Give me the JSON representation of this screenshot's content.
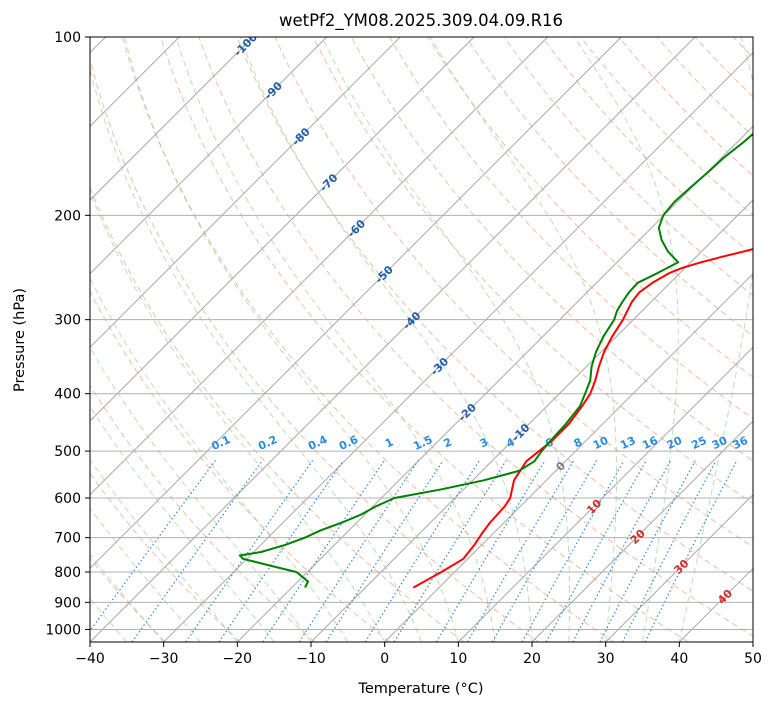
{
  "chart_data": {
    "type": "line",
    "title": "wetPf2_YM08.2025.309.04.09.R16",
    "xlabel": "Temperature (°C)",
    "ylabel": "Pressure (hPa)",
    "xlim": [
      -40,
      50
    ],
    "ylim": [
      1050,
      100
    ],
    "y_scale": "log",
    "grid": true,
    "x_ticks": [
      -40,
      -30,
      -20,
      -10,
      0,
      10,
      20,
      30,
      40,
      50
    ],
    "y_ticks": [
      100,
      200,
      300,
      400,
      500,
      600,
      700,
      800,
      900,
      1000
    ],
    "skew_isotherm_labels": [
      "-100",
      "-90",
      "-80",
      "-70",
      "-60",
      "-50",
      "-40",
      "-30",
      "-20",
      "-10",
      "0",
      "10",
      "20",
      "30",
      "40"
    ],
    "mixing_ratio_labels": [
      "0.1",
      "0.2",
      "0.4",
      "0.6",
      "1",
      "1.5",
      "2",
      "3",
      "4",
      "6",
      "8",
      "10",
      "13",
      "16",
      "20",
      "25",
      "30",
      "36"
    ],
    "series": [
      {
        "color": "#ff0000",
        "pressure": [
          850,
          800,
          760,
          720,
          690,
          660,
          620,
          600,
          560,
          520,
          480,
          450,
          420,
          400,
          380,
          360,
          340,
          320,
          300,
          290,
          280,
          270,
          260,
          250,
          245,
          240,
          235,
          230,
          225,
          220,
          210,
          200,
          190,
          180,
          170,
          160,
          150,
          140,
          130,
          120,
          115,
          110,
          105,
          100
        ],
        "temperature": [
          -3.5,
          -1.8,
          -0.6,
          -1.0,
          -1.5,
          -1.9,
          -2.1,
          -2.5,
          -4.4,
          -5.3,
          -4.6,
          -4.6,
          -5.2,
          -5.8,
          -6.9,
          -8.3,
          -9.6,
          -10.6,
          -11.4,
          -12.0,
          -12.6,
          -12.9,
          -12.4,
          -11.4,
          -10.3,
          -8.6,
          -6.5,
          -4.2,
          -2.0,
          -0.3,
          0.8,
          2.4,
          4.0,
          5.6,
          7.1,
          8.8,
          10.8,
          12.4,
          14.4,
          16.3,
          17.6,
          18.8,
          19.6,
          20.3
        ]
      },
      {
        "color": "#008000",
        "pressure": [
          850,
          830,
          800,
          780,
          760,
          750,
          740,
          720,
          700,
          680,
          660,
          640,
          620,
          600,
          580,
          560,
          540,
          520,
          500,
          480,
          450,
          420,
          400,
          380,
          360,
          340,
          320,
          300,
          290,
          280,
          270,
          260,
          250,
          240,
          230,
          220,
          210,
          200,
          190,
          180,
          170,
          160,
          150,
          140,
          130,
          120,
          110,
          100
        ],
        "temperature": [
          -18.2,
          -18.6,
          -21.5,
          -26.0,
          -30.5,
          -31.4,
          -29.0,
          -26.7,
          -25.0,
          -23.8,
          -22.0,
          -20.5,
          -19.6,
          -18.2,
          -13.0,
          -8.5,
          -5.0,
          -4.2,
          -4.6,
          -4.8,
          -5.0,
          -5.5,
          -6.5,
          -7.6,
          -9.3,
          -10.7,
          -11.8,
          -12.6,
          -13.4,
          -13.9,
          -14.3,
          -14.4,
          -13.0,
          -11.7,
          -14.6,
          -17.0,
          -19.0,
          -20.1,
          -20.4,
          -20.2,
          -19.9,
          -19.7,
          -19.1,
          -18.8,
          -18.6,
          -18.3,
          -17.6,
          -16.8
        ]
      }
    ]
  }
}
